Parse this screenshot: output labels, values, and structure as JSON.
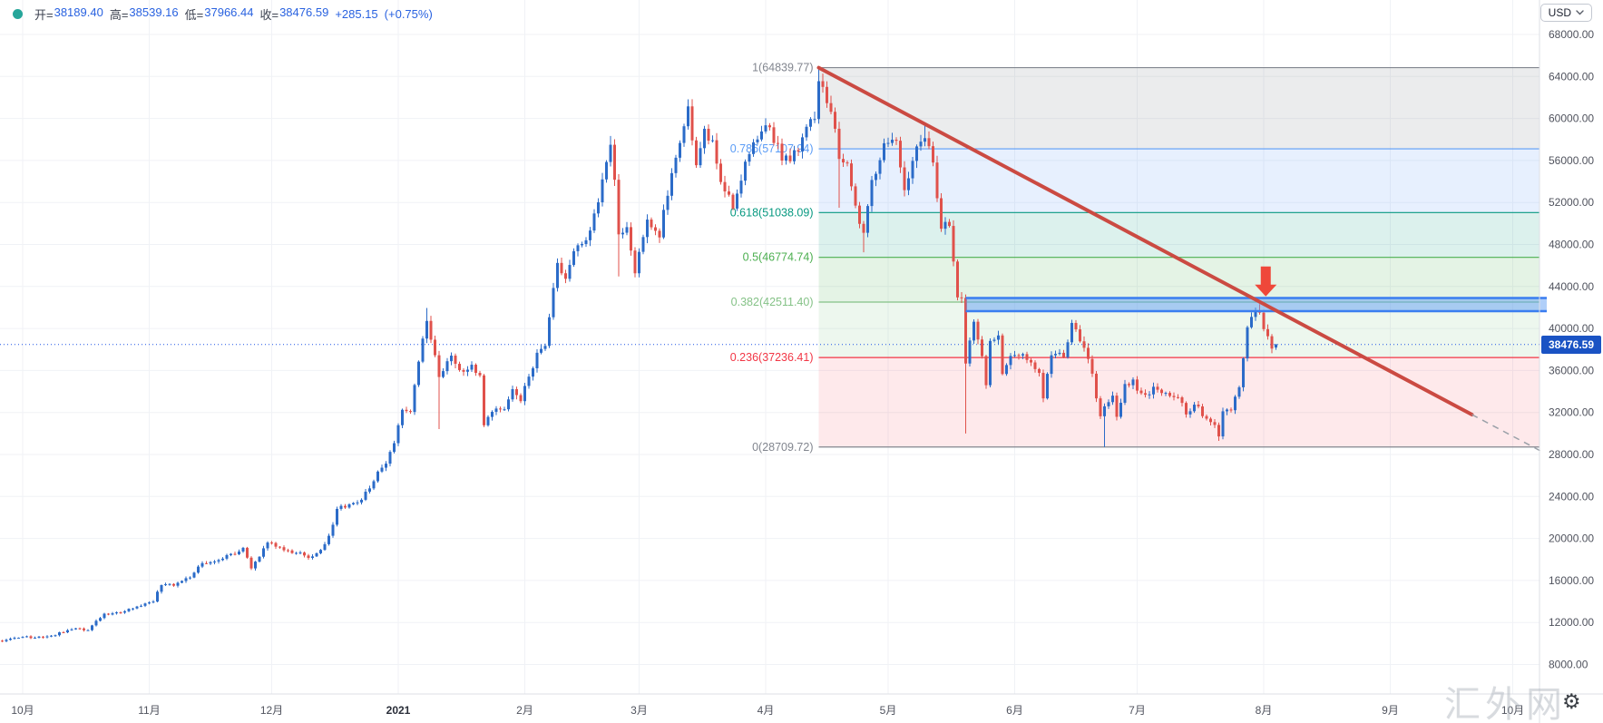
{
  "header": {
    "legend": {
      "items": [
        {
          "label": "开=",
          "value": "38189.40"
        },
        {
          "label": "高=",
          "value": "38539.16"
        },
        {
          "label": "低=",
          "value": "37966.44"
        },
        {
          "label": "收=",
          "value": "38476.59"
        }
      ],
      "change": "+285.15",
      "change_pct": "(+0.75%)"
    },
    "currency_selector": {
      "label": "USD"
    }
  },
  "watermark": "汇外网",
  "colors": {
    "up_candle": "#2b6bc8",
    "down_candle": "#e0514b",
    "grid": "#f0f2f6",
    "axis_text": "#50535e",
    "trendline": "#cb4a42",
    "trendline_dashed": "#9aa0a8",
    "arrow": "#ef483a",
    "band_fill": "rgba(98,160,244,0.50)",
    "band_border": "#3a7df0",
    "price_line": "#1e53e5",
    "badge_bg": "#1a53c4",
    "legend_value": "#2962e0",
    "legend_dot": "#26a69a"
  },
  "y_axis": {
    "ticks": [
      "68000.00",
      "64000.00",
      "60000.00",
      "56000.00",
      "52000.00",
      "48000.00",
      "44000.00",
      "40000.00",
      "36000.00",
      "32000.00",
      "28000.00",
      "24000.00",
      "20000.00",
      "16000.00",
      "12000.00",
      "8000.00"
    ],
    "current_price": "38476.59"
  },
  "x_axis": {
    "labels": [
      {
        "text": "10月",
        "day": 0
      },
      {
        "text": "11月",
        "day": 31
      },
      {
        "text": "12月",
        "day": 61
      },
      {
        "text": "2021",
        "day": 92,
        "bold": true
      },
      {
        "text": "2月",
        "day": 123
      },
      {
        "text": "3月",
        "day": 151
      },
      {
        "text": "4月",
        "day": 182
      },
      {
        "text": "5月",
        "day": 212
      },
      {
        "text": "6月",
        "day": 243
      },
      {
        "text": "7月",
        "day": 273
      },
      {
        "text": "8月",
        "day": 304
      },
      {
        "text": "9月",
        "day": 335
      },
      {
        "text": "10月",
        "day": 365
      }
    ]
  },
  "fibonacci": {
    "start_day": 195,
    "levels": [
      {
        "ratio": "1",
        "price": 64839.77,
        "label": "1(64839.77)",
        "color": "#82868f",
        "zone_color": "rgba(130,134,144,0.16)"
      },
      {
        "ratio": "0.786",
        "price": 57107.94,
        "label": "0.786(57107.94)",
        "color": "#5b9cf6",
        "zone_color": "rgba(91,156,246,0.15)"
      },
      {
        "ratio": "0.618",
        "price": 51038.09,
        "label": "0.618(51038.09)",
        "color": "#089981",
        "zone_color": "rgba(8,153,129,0.14)"
      },
      {
        "ratio": "0.5",
        "price": 46774.74,
        "label": "0.5(46774.74)",
        "color": "#4caf50",
        "zone_color": "rgba(76,175,80,0.15)"
      },
      {
        "ratio": "0.382",
        "price": 42511.4,
        "label": "0.382(42511.40)",
        "color": "#85c287",
        "zone_color": "rgba(129,199,132,0.14)"
      },
      {
        "ratio": "0.236",
        "price": 37236.41,
        "label": "0.236(37236.41)",
        "color": "#f23645",
        "zone_color": "rgba(242,54,69,0.11)"
      },
      {
        "ratio": "0",
        "price": 28709.72,
        "label": "0(28709.72)",
        "color": "#82868f",
        "zone_color": null
      }
    ]
  },
  "chart_data": {
    "type": "candlestick",
    "symbol": "BTC/USD daily",
    "y_range": [
      8000,
      68000
    ],
    "x_range_days": [
      -6,
      372
    ],
    "grid": true,
    "close_anchors": [
      [
        -6,
        10250
      ],
      [
        0,
        10620
      ],
      [
        3,
        10570
      ],
      [
        6,
        10670
      ],
      [
        10,
        11060
      ],
      [
        13,
        11420
      ],
      [
        16,
        11300
      ],
      [
        20,
        12810
      ],
      [
        23,
        12930
      ],
      [
        25,
        13060
      ],
      [
        28,
        13550
      ],
      [
        30,
        13780
      ],
      [
        32,
        14020
      ],
      [
        34,
        15600
      ],
      [
        37,
        15480
      ],
      [
        41,
        16320
      ],
      [
        44,
        17650
      ],
      [
        47,
        17800
      ],
      [
        50,
        18420
      ],
      [
        53,
        18730
      ],
      [
        54,
        19150
      ],
      [
        56,
        17150
      ],
      [
        58,
        18250
      ],
      [
        60,
        19625
      ],
      [
        63,
        19200
      ],
      [
        66,
        18650
      ],
      [
        71,
        18250
      ],
      [
        74,
        19420
      ],
      [
        76,
        21310
      ],
      [
        77,
        22800
      ],
      [
        80,
        23240
      ],
      [
        83,
        23730
      ],
      [
        85,
        24700
      ],
      [
        87,
        26440
      ],
      [
        89,
        27080
      ],
      [
        91,
        28990
      ],
      [
        93,
        32180
      ],
      [
        95,
        31980
      ],
      [
        97,
        36850
      ],
      [
        99,
        40790
      ],
      [
        102,
        35450
      ],
      [
        105,
        37380
      ],
      [
        108,
        35830
      ],
      [
        110,
        36630
      ],
      [
        112,
        35500
      ],
      [
        113,
        30820
      ],
      [
        115,
        32100
      ],
      [
        118,
        32290
      ],
      [
        120,
        34300
      ],
      [
        122,
        33110
      ],
      [
        124,
        35500
      ],
      [
        126,
        37620
      ],
      [
        128,
        38290
      ],
      [
        131,
        46370
      ],
      [
        133,
        44820
      ],
      [
        135,
        47430
      ],
      [
        137,
        47910
      ],
      [
        139,
        49200
      ],
      [
        141,
        52150
      ],
      [
        143,
        55900
      ],
      [
        144,
        57540
      ],
      [
        145,
        54100
      ],
      [
        146,
        48900
      ],
      [
        148,
        49700
      ],
      [
        150,
        45140
      ],
      [
        153,
        50350
      ],
      [
        156,
        48750
      ],
      [
        159,
        54900
      ],
      [
        161,
        57800
      ],
      [
        163,
        61200
      ],
      [
        165,
        55600
      ],
      [
        167,
        58900
      ],
      [
        169,
        58050
      ],
      [
        171,
        54100
      ],
      [
        174,
        51300
      ],
      [
        177,
        55780
      ],
      [
        179,
        57600
      ],
      [
        181,
        58930
      ],
      [
        183,
        59100
      ],
      [
        186,
        56100
      ],
      [
        188,
        56000
      ],
      [
        191,
        58100
      ],
      [
        194,
        59990
      ],
      [
        195,
        63500
      ],
      [
        196,
        63100
      ],
      [
        198,
        60700
      ],
      [
        200,
        56200
      ],
      [
        202,
        55700
      ],
      [
        204,
        51700
      ],
      [
        206,
        49000
      ],
      [
        208,
        54000
      ],
      [
        211,
        57750
      ],
      [
        214,
        57800
      ],
      [
        216,
        53200
      ],
      [
        219,
        57300
      ],
      [
        221,
        58250
      ],
      [
        223,
        55850
      ],
      [
        225,
        49500
      ],
      [
        227,
        49850
      ],
      [
        228,
        46450
      ],
      [
        229,
        43000
      ],
      [
        230,
        42900
      ],
      [
        231,
        36690
      ],
      [
        233,
        40600
      ],
      [
        235,
        37450
      ],
      [
        236,
        34700
      ],
      [
        237,
        38800
      ],
      [
        239,
        39300
      ],
      [
        240,
        35660
      ],
      [
        242,
        37300
      ],
      [
        245,
        37575
      ],
      [
        247,
        36850
      ],
      [
        249,
        35800
      ],
      [
        250,
        33400
      ],
      [
        252,
        37400
      ],
      [
        255,
        37300
      ],
      [
        257,
        40500
      ],
      [
        260,
        38100
      ],
      [
        262,
        35600
      ],
      [
        264,
        31600
      ],
      [
        265,
        32500
      ],
      [
        267,
        33700
      ],
      [
        268,
        31600
      ],
      [
        270,
        34700
      ],
      [
        272,
        35040
      ],
      [
        274,
        33800
      ],
      [
        278,
        34230
      ],
      [
        280,
        33900
      ],
      [
        283,
        33500
      ],
      [
        285,
        31800
      ],
      [
        287,
        32820
      ],
      [
        290,
        31400
      ],
      [
        292,
        30820
      ],
      [
        293,
        29790
      ],
      [
        294,
        32150
      ],
      [
        296,
        32300
      ],
      [
        298,
        34300
      ],
      [
        299,
        37240
      ],
      [
        300,
        40020
      ],
      [
        302,
        41550
      ],
      [
        303,
        41460
      ],
      [
        304,
        39850
      ],
      [
        305,
        39150
      ],
      [
        306,
        38200
      ],
      [
        307,
        38476.59
      ]
    ],
    "overrides": {
      "99": {
        "high": 41950
      },
      "102": {
        "low": 30420
      },
      "144": {
        "high": 58330
      },
      "146": {
        "low": 44950
      },
      "163": {
        "high": 61825
      },
      "195": {
        "high": 64839.77
      },
      "200": {
        "low": 51500
      },
      "206": {
        "low": 47250
      },
      "221": {
        "high": 59500
      },
      "231": {
        "low": 30000
      },
      "265": {
        "low": 28709.72
      },
      "293": {
        "low": 29296
      },
      "303": {
        "high": 42320
      },
      "307": {
        "open": 38189.4,
        "high": 38539.16,
        "low": 37966.44,
        "close": 38476.59
      }
    },
    "annotations": {
      "trendline": {
        "start": {
          "day": 195,
          "price": 64839.77
        },
        "solid_end": {
          "day": 355,
          "price": 31800
        },
        "dashed_end": {
          "day": 372,
          "price": 28300
        }
      },
      "resistance_band": {
        "from_day": 231,
        "top_price": 42900,
        "bottom_price": 41650
      },
      "down_arrow": {
        "day": 304.5,
        "tail_price": 45900,
        "tip_price": 43050
      },
      "current_price_line": 38476.59
    }
  }
}
